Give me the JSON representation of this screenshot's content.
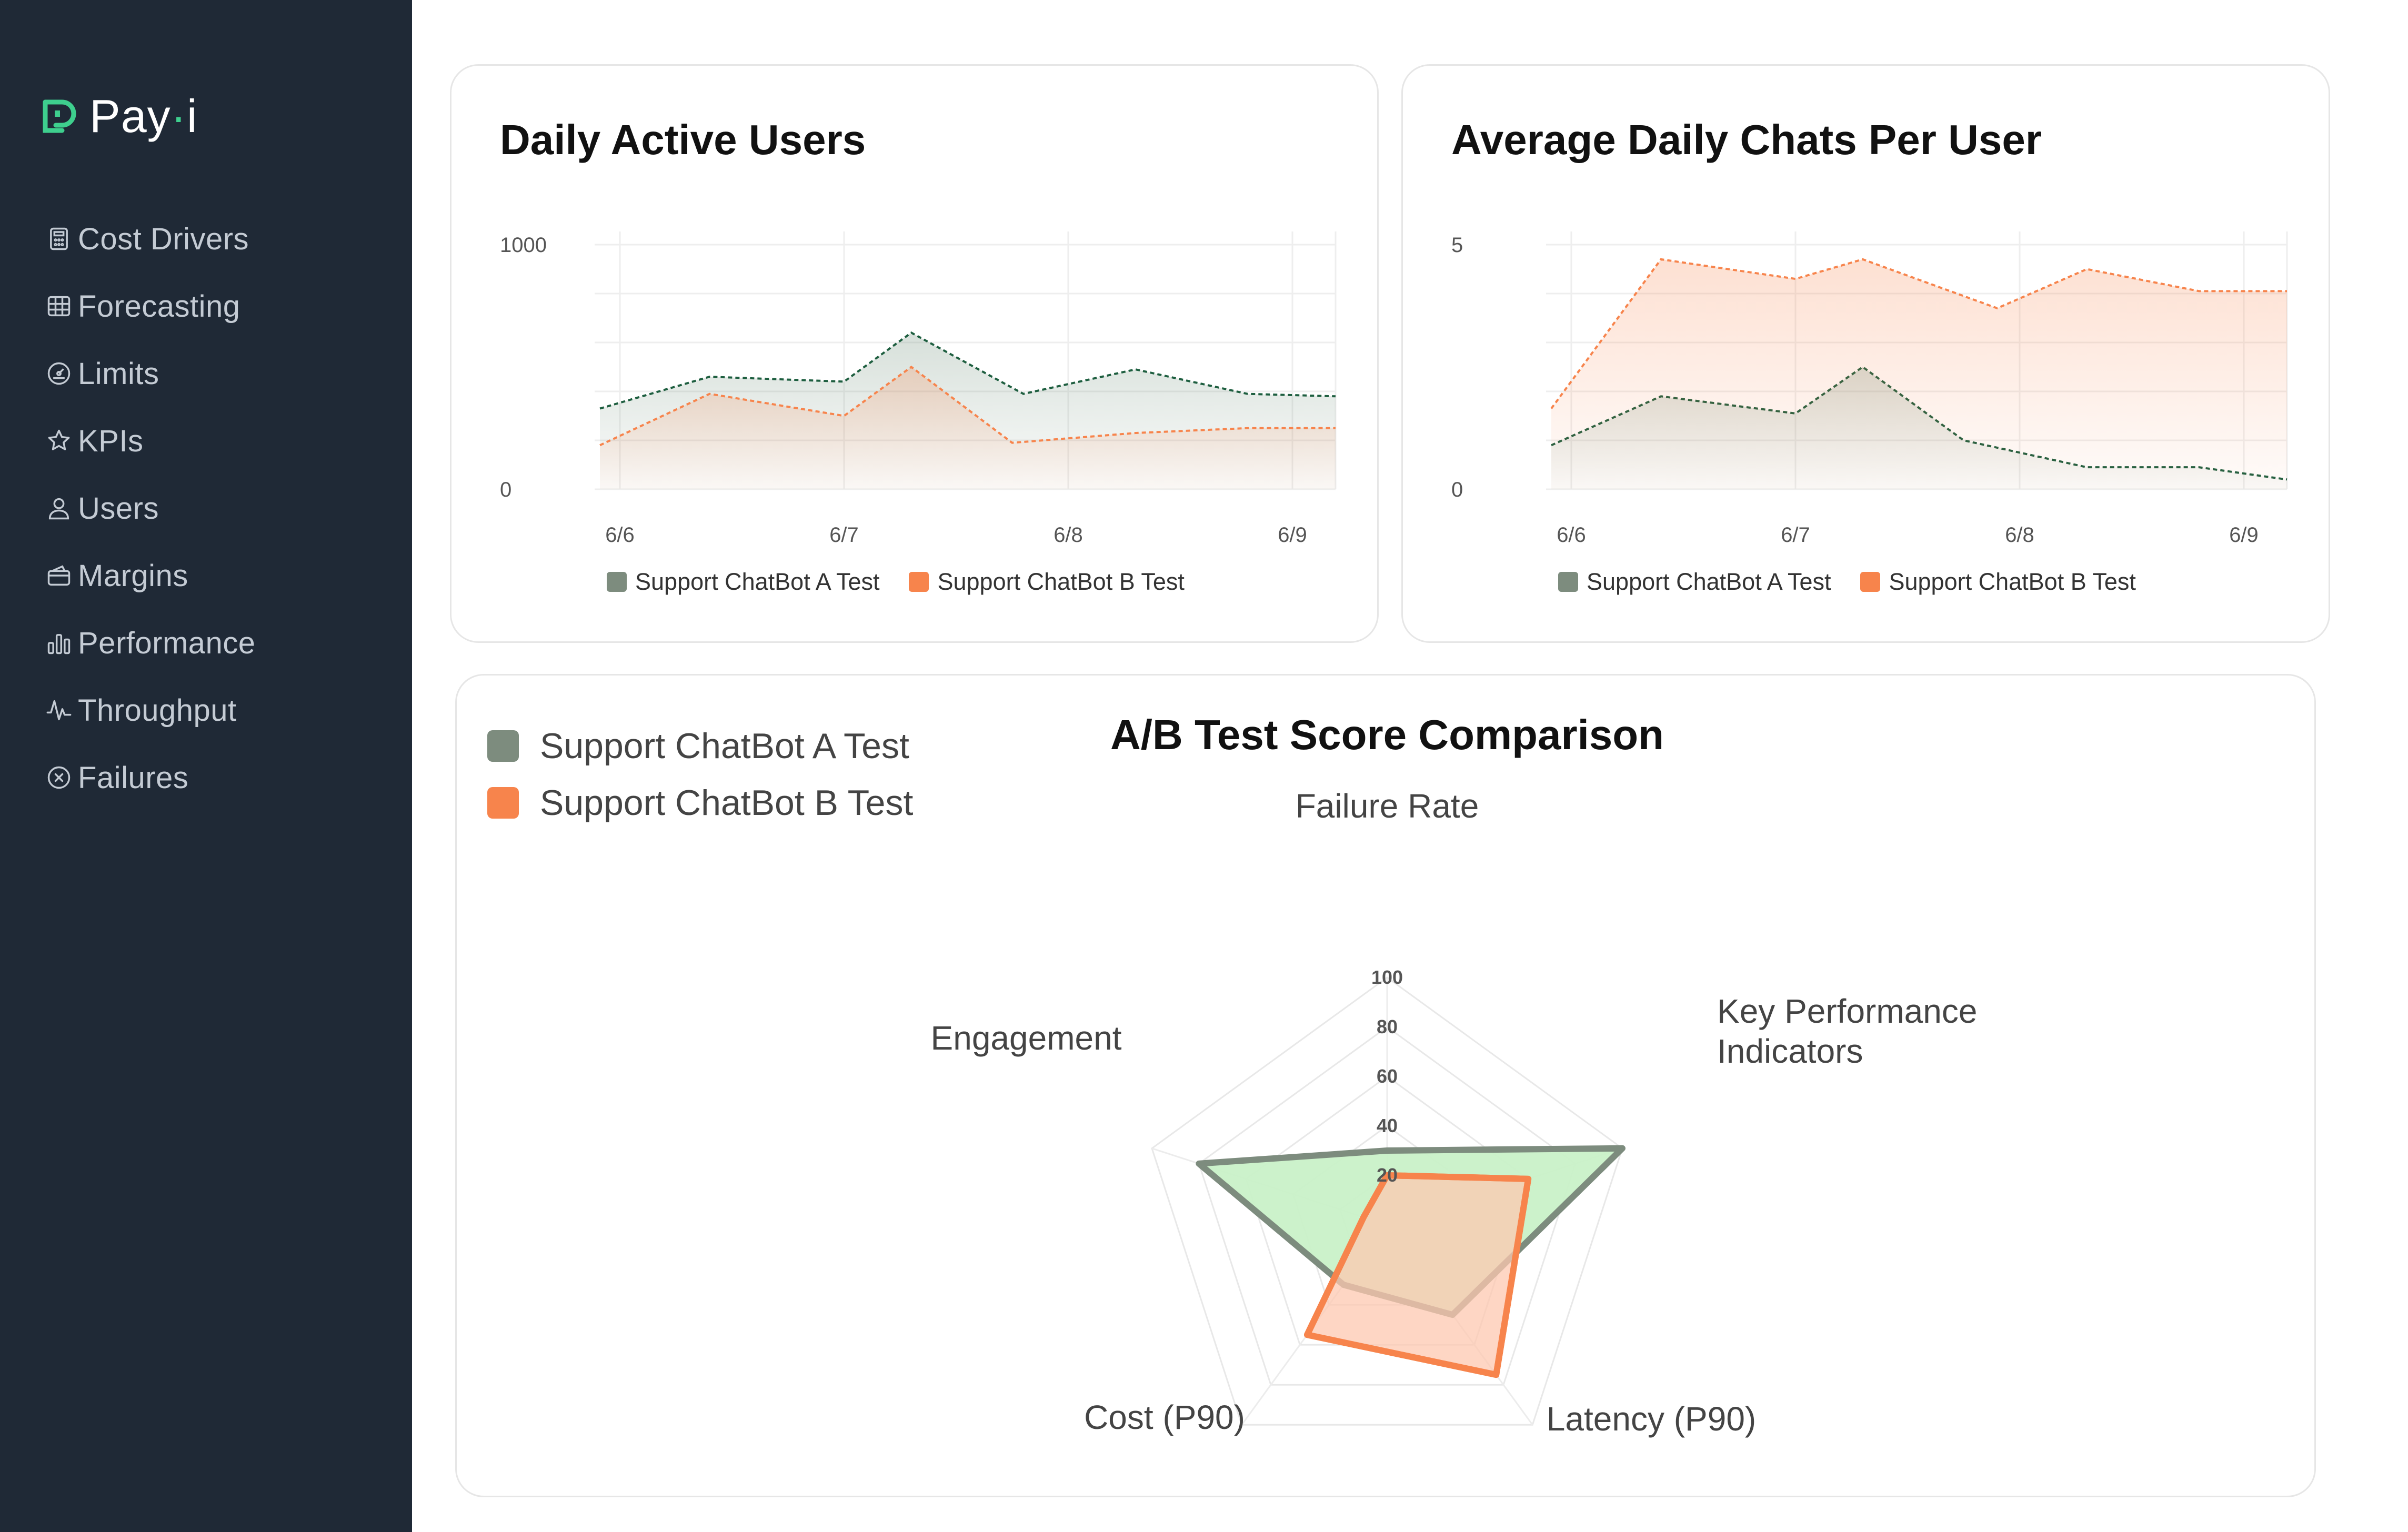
{
  "app": {
    "logo_text_a": "Pay",
    "logo_text_dot": "·",
    "logo_text_b": "i"
  },
  "sidebar": {
    "items": [
      {
        "label": "Cost Drivers",
        "icon": "calculator-icon"
      },
      {
        "label": "Forecasting",
        "icon": "calendar-grid-icon"
      },
      {
        "label": "Limits",
        "icon": "gauge-icon"
      },
      {
        "label": "KPIs",
        "icon": "star-icon"
      },
      {
        "label": "Users",
        "icon": "user-icon"
      },
      {
        "label": "Margins",
        "icon": "wallet-icon"
      },
      {
        "label": "Performance",
        "icon": "bar-chart-icon"
      },
      {
        "label": "Throughput",
        "icon": "pulse-icon"
      },
      {
        "label": "Failures",
        "icon": "x-circle-icon"
      }
    ]
  },
  "colors": {
    "series_a": "#7d8c7e",
    "series_a_line": "#1d5e3f",
    "series_b": "#f7844c",
    "radar_a_fill": "#c9f1c8",
    "radar_b_fill": "#fdc8b0",
    "sidebar_bg": "#1f2936",
    "accent": "#3ecf8e"
  },
  "chart_data": [
    {
      "type": "area",
      "title": "Daily Active Users",
      "x": [
        "6/6",
        "6/7",
        "6/8",
        "6/9"
      ],
      "ylim": [
        0,
        1000
      ],
      "yticks": [
        "0",
        "1000"
      ],
      "grid": true,
      "legend_position": "bottom",
      "series": [
        {
          "name": "Support ChatBot A Test",
          "points": [
            [
              0,
              330
            ],
            [
              0.4,
              460
            ],
            [
              1,
              440
            ],
            [
              1.3,
              640
            ],
            [
              1.8,
              390
            ],
            [
              2.3,
              490
            ],
            [
              2.8,
              390
            ],
            [
              3.2,
              380
            ]
          ]
        },
        {
          "name": "Support ChatBot B Test",
          "points": [
            [
              0,
              180
            ],
            [
              0.4,
              390
            ],
            [
              1,
              300
            ],
            [
              1.3,
              500
            ],
            [
              1.75,
              190
            ],
            [
              2.3,
              230
            ],
            [
              2.8,
              250
            ],
            [
              3.2,
              250
            ]
          ]
        }
      ]
    },
    {
      "type": "area",
      "title": "Average Daily Chats Per User",
      "x": [
        "6/6",
        "6/7",
        "6/8",
        "6/9"
      ],
      "ylim": [
        0,
        5
      ],
      "yticks": [
        "0",
        "5"
      ],
      "grid": true,
      "legend_position": "bottom",
      "series": [
        {
          "name": "Support ChatBot A Test",
          "points": [
            [
              0,
              0.9
            ],
            [
              0.4,
              1.9
            ],
            [
              1,
              1.55
            ],
            [
              1.3,
              2.5
            ],
            [
              1.75,
              1.0
            ],
            [
              2.3,
              0.45
            ],
            [
              2.8,
              0.45
            ],
            [
              3.2,
              0.2
            ]
          ]
        },
        {
          "name": "Support ChatBot B Test",
          "points": [
            [
              0,
              1.65
            ],
            [
              0.4,
              4.7
            ],
            [
              1,
              4.3
            ],
            [
              1.3,
              4.7
            ],
            [
              1.9,
              3.7
            ],
            [
              2.3,
              4.5
            ],
            [
              2.8,
              4.05
            ],
            [
              3.2,
              4.05
            ]
          ]
        }
      ]
    },
    {
      "type": "radar",
      "title": "A/B Test Score Comparison",
      "axes": [
        "Failure Rate",
        "Key Performance Indicators",
        "Latency (P90)",
        "Cost (P90)",
        "Engagement"
      ],
      "rticks": [
        "20",
        "40",
        "60",
        "80",
        "100"
      ],
      "rlim": [
        0,
        100
      ],
      "legend_position": "top-left",
      "series": [
        {
          "name": "Support ChatBot A Test",
          "values": [
            30,
            100,
            45,
            30,
            80
          ]
        },
        {
          "name": "Support ChatBot B Test",
          "values": [
            20,
            60,
            75,
            55,
            10
          ]
        }
      ]
    }
  ]
}
